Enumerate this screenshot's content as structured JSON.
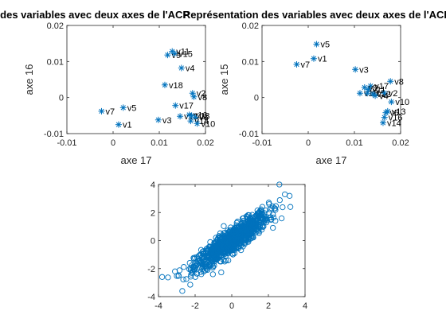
{
  "chart_data": [
    {
      "type": "scatter",
      "title": "Représentation des variables avec deux axes de l'ACP",
      "xlabel": "axe 17",
      "ylabel": "axe 16",
      "xlim": [
        -0.01,
        0.02
      ],
      "ylim": [
        -0.01,
        0.02
      ],
      "xticks": [
        "-0.01",
        "0",
        "0.01",
        "0.02"
      ],
      "yticks": [
        "-0.01",
        "0",
        "0.01",
        "0.02"
      ],
      "marker": "asterisk",
      "color": "#0072BD",
      "points": [
        {
          "label": "v7",
          "x": -0.0025,
          "y": -0.0038
        },
        {
          "label": "v1",
          "x": 0.0012,
          "y": -0.0075
        },
        {
          "label": "v5",
          "x": 0.0022,
          "y": -0.0028
        },
        {
          "label": "v3",
          "x": 0.0098,
          "y": -0.0062
        },
        {
          "label": "v11",
          "x": 0.0128,
          "y": 0.0128
        },
        {
          "label": "v9",
          "x": 0.0118,
          "y": 0.0118
        },
        {
          "label": "v15",
          "x": 0.0133,
          "y": 0.0122
        },
        {
          "label": "v4",
          "x": 0.0148,
          "y": 0.0082
        },
        {
          "label": "v18",
          "x": 0.0112,
          "y": 0.0035
        },
        {
          "label": "v2",
          "x": 0.0172,
          "y": 0.0012
        },
        {
          "label": "v8",
          "x": 0.0175,
          "y": 0.0002
        },
        {
          "label": "v17",
          "x": 0.0135,
          "y": -0.0022
        },
        {
          "label": "v12",
          "x": 0.0145,
          "y": -0.0052
        },
        {
          "label": "v16",
          "x": 0.0165,
          "y": -0.0048
        },
        {
          "label": "v13",
          "x": 0.017,
          "y": -0.005
        },
        {
          "label": "v6",
          "x": 0.0178,
          "y": -0.0055
        },
        {
          "label": "v14",
          "x": 0.0168,
          "y": -0.0065
        },
        {
          "label": "v10",
          "x": 0.0182,
          "y": -0.0072
        }
      ]
    },
    {
      "type": "scatter",
      "title": "Représentation des variables avec deux axes de l'ACP",
      "xlabel": "axe 17",
      "ylabel": "axe 15",
      "xlim": [
        -0.01,
        0.02
      ],
      "ylim": [
        -0.01,
        0.02
      ],
      "xticks": [
        "-0.01",
        "0",
        "0.01",
        "0.02"
      ],
      "yticks": [
        "-0.01",
        "0",
        "0.01",
        "0.02"
      ],
      "marker": "asterisk",
      "color": "#0072BD",
      "points": [
        {
          "label": "v5",
          "x": 0.0018,
          "y": 0.0148
        },
        {
          "label": "v1",
          "x": 0.0012,
          "y": 0.0108
        },
        {
          "label": "v7",
          "x": -0.0025,
          "y": 0.0092
        },
        {
          "label": "v3",
          "x": 0.0102,
          "y": 0.0078
        },
        {
          "label": "v8",
          "x": 0.0178,
          "y": 0.0045
        },
        {
          "label": "v17",
          "x": 0.0135,
          "y": 0.0032
        },
        {
          "label": "v9",
          "x": 0.0122,
          "y": 0.0028
        },
        {
          "label": "v11",
          "x": 0.013,
          "y": 0.0022
        },
        {
          "label": "v18",
          "x": 0.0112,
          "y": 0.0012
        },
        {
          "label": "v15",
          "x": 0.0128,
          "y": 0.0012
        },
        {
          "label": "v12",
          "x": 0.014,
          "y": 0.001
        },
        {
          "label": "v2",
          "x": 0.0165,
          "y": 0.0012
        },
        {
          "label": "v4",
          "x": 0.0145,
          "y": 0.0005
        },
        {
          "label": "v10",
          "x": 0.018,
          "y": -0.0012
        },
        {
          "label": "v13",
          "x": 0.0172,
          "y": -0.0038
        },
        {
          "label": "v6",
          "x": 0.0168,
          "y": -0.0042
        },
        {
          "label": "v16",
          "x": 0.0165,
          "y": -0.0055
        },
        {
          "label": "v14",
          "x": 0.0162,
          "y": -0.007
        }
      ]
    },
    {
      "type": "scatter",
      "title": "",
      "xlabel": "",
      "ylabel": "",
      "xlim": [
        -4,
        4
      ],
      "ylim": [
        -4,
        4
      ],
      "xticks": [
        "-4",
        "-2",
        "0",
        "2",
        "4"
      ],
      "yticks": [
        "-4",
        "-2",
        "0",
        "2",
        "4"
      ],
      "marker": "circle",
      "color": "#0072BD",
      "distribution": {
        "mean_x": 0,
        "mean_y": 0,
        "sd_x": 1,
        "sd_y": 1,
        "correlation": 0.9,
        "n": 1000
      },
      "extreme_points": [
        {
          "x": -3.8,
          "y": -2.6
        },
        {
          "x": -2.7,
          "y": -3.6
        },
        {
          "x": -3.1,
          "y": -2.2
        },
        {
          "x": 2.6,
          "y": 4.0
        },
        {
          "x": 3.2,
          "y": 2.4
        },
        {
          "x": 2.9,
          "y": 3.3
        }
      ]
    }
  ]
}
